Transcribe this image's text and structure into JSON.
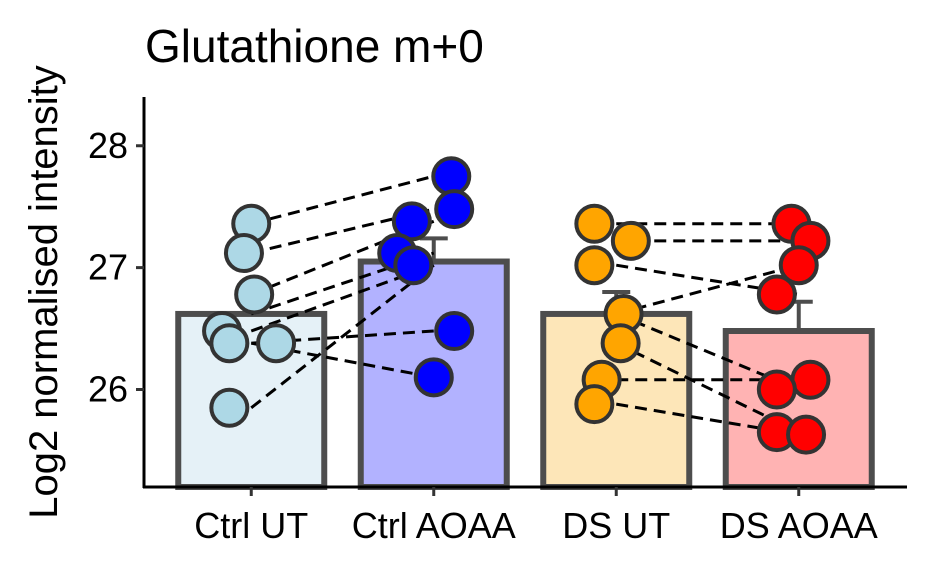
{
  "chart_data": {
    "type": "bar",
    "title": "Glutathione m+0",
    "ylabel": "Log2 normalised intensity",
    "xlabel": "",
    "categories": [
      "Ctrl UT",
      "Ctrl AOAA",
      "DS UT",
      "DS AOAA"
    ],
    "values": [
      26.62,
      27.05,
      26.62,
      26.48
    ],
    "errors": [
      0.15,
      0.19,
      0.18,
      0.24
    ],
    "ylim": [
      25.2,
      28.4
    ],
    "yticks": [
      26,
      27,
      28
    ],
    "grid": false,
    "legend": "none",
    "bar_fill_colors": [
      "#e5f1f7",
      "#b2b2ff",
      "#fde6b8",
      "#ffb3b3"
    ],
    "point_colors": [
      "#add8e6",
      "#0000ff",
      "#ffa500",
      "#ff0000"
    ],
    "points": [
      [
        {
          "dx": 0.0,
          "y": 27.36
        },
        {
          "dx": -0.05,
          "y": 27.12
        },
        {
          "dx": 0.02,
          "y": 26.78
        },
        {
          "dx": -0.2,
          "y": 26.48
        },
        {
          "dx": -0.15,
          "y": 26.38
        },
        {
          "dx": 0.17,
          "y": 26.38
        },
        {
          "dx": -0.15,
          "y": 25.85
        }
      ],
      [
        {
          "dx": 0.12,
          "y": 27.75
        },
        {
          "dx": 0.14,
          "y": 27.48
        },
        {
          "dx": -0.15,
          "y": 27.38
        },
        {
          "dx": -0.25,
          "y": 27.12
        },
        {
          "dx": -0.14,
          "y": 27.02
        },
        {
          "dx": 0.14,
          "y": 26.48
        },
        {
          "dx": 0.0,
          "y": 26.1
        }
      ],
      [
        {
          "dx": -0.15,
          "y": 27.36
        },
        {
          "dx": 0.1,
          "y": 27.22
        },
        {
          "dx": -0.15,
          "y": 27.02
        },
        {
          "dx": 0.05,
          "y": 26.62
        },
        {
          "dx": 0.03,
          "y": 26.38
        },
        {
          "dx": -0.1,
          "y": 26.08
        },
        {
          "dx": -0.15,
          "y": 25.88
        }
      ],
      [
        {
          "dx": -0.05,
          "y": 27.36
        },
        {
          "dx": 0.08,
          "y": 27.22
        },
        {
          "dx": 0.0,
          "y": 27.02
        },
        {
          "dx": -0.15,
          "y": 26.78
        },
        {
          "dx": 0.08,
          "y": 26.08
        },
        {
          "dx": -0.15,
          "y": 26.0
        },
        {
          "dx": -0.15,
          "y": 25.65
        },
        {
          "dx": 0.05,
          "y": 25.63
        }
      ]
    ],
    "pair_lines": [
      {
        "from": [
          0,
          27.36
        ],
        "to": [
          1,
          27.75
        ]
      },
      {
        "from": [
          0,
          27.12
        ],
        "to": [
          1,
          27.48
        ]
      },
      {
        "from": [
          0,
          26.78
        ],
        "to": [
          1,
          27.38
        ]
      },
      {
        "from": [
          0,
          26.62
        ],
        "to": [
          1,
          27.12
        ]
      },
      {
        "from": [
          0,
          26.48
        ],
        "to": [
          1,
          27.02
        ]
      },
      {
        "from": [
          0,
          26.38
        ],
        "to": [
          1,
          26.48
        ]
      },
      {
        "from": [
          0,
          26.38
        ],
        "to": [
          1,
          26.1
        ]
      },
      {
        "from": [
          0,
          25.85
        ],
        "to": [
          1,
          27.02
        ]
      },
      {
        "from": [
          2,
          27.36
        ],
        "to": [
          3,
          27.36
        ]
      },
      {
        "from": [
          2,
          27.22
        ],
        "to": [
          3,
          27.22
        ]
      },
      {
        "from": [
          2,
          27.02
        ],
        "to": [
          3,
          26.78
        ]
      },
      {
        "from": [
          2,
          26.62
        ],
        "to": [
          3,
          27.02
        ]
      },
      {
        "from": [
          2,
          26.62
        ],
        "to": [
          3,
          26.0
        ]
      },
      {
        "from": [
          2,
          26.38
        ],
        "to": [
          3,
          25.65
        ]
      },
      {
        "from": [
          2,
          26.08
        ],
        "to": [
          3,
          26.08
        ]
      },
      {
        "from": [
          2,
          25.88
        ],
        "to": [
          3,
          25.63
        ]
      }
    ]
  }
}
